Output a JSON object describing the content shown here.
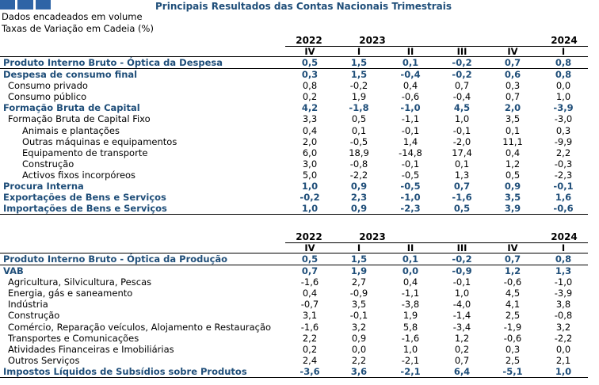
{
  "title": "Principais Resultados das Contas Nacionais Trimestrais",
  "subtitle1": "Dados encadeados em volume",
  "subtitle2": "Taxas de Variação em Cadeia (%)",
  "colors": {
    "accent": "#1f4e79",
    "logo": "#2e64a6"
  },
  "years": [
    "2022",
    "2023",
    "2024"
  ],
  "quarters": [
    "IV",
    "I",
    "II",
    "III",
    "IV",
    "I"
  ],
  "table1": [
    {
      "label": "Produto Interno Bruto - Óptica da Despesa",
      "values": [
        "0,5",
        "1,5",
        "0,1",
        "-0,2",
        "0,7",
        "0,8"
      ],
      "style": "b",
      "level": "l0"
    },
    {
      "label": "Despesa de consumo final",
      "values": [
        "0,3",
        "1,5",
        "-0,4",
        "-0,2",
        "0,6",
        "0,8"
      ],
      "style": "b",
      "level": "l0"
    },
    {
      "label": "Consumo privado",
      "values": [
        "0,8",
        "-0,2",
        "0,4",
        "0,7",
        "0,3",
        "0,0"
      ],
      "style": "",
      "level": "l1"
    },
    {
      "label": "Consumo público",
      "values": [
        "0,2",
        "1,9",
        "-0,6",
        "-0,4",
        "0,7",
        "1,0"
      ],
      "style": "",
      "level": "l1"
    },
    {
      "label": "Formação Bruta de Capital",
      "values": [
        "4,2",
        "-1,8",
        "-1,0",
        "4,5",
        "2,0",
        "-3,9"
      ],
      "style": "b",
      "level": "l0"
    },
    {
      "label": "Formação Bruta de Capital Fixo",
      "values": [
        "3,3",
        "0,5",
        "-1,1",
        "1,0",
        "3,5",
        "-3,0"
      ],
      "style": "",
      "level": "l1"
    },
    {
      "label": "Animais e plantações",
      "values": [
        "0,4",
        "0,1",
        "-0,1",
        "-0,1",
        "0,1",
        "0,3"
      ],
      "style": "",
      "level": "l2"
    },
    {
      "label": "Outras máquinas e equipamentos",
      "values": [
        "2,0",
        "-0,5",
        "1,4",
        "-2,0",
        "11,1",
        "-9,9"
      ],
      "style": "",
      "level": "l2"
    },
    {
      "label": "Equipamento de transporte",
      "values": [
        "6,0",
        "18,9",
        "-14,8",
        "17,4",
        "0,4",
        "2,2"
      ],
      "style": "",
      "level": "l2"
    },
    {
      "label": "Construção",
      "values": [
        "3,0",
        "-0,8",
        "-0,1",
        "0,1",
        "1,2",
        "-0,3"
      ],
      "style": "",
      "level": "l2"
    },
    {
      "label": "Activos fixos incorpóreos",
      "values": [
        "5,0",
        "-2,2",
        "-0,5",
        "1,3",
        "0,5",
        "-2,3"
      ],
      "style": "",
      "level": "l2"
    },
    {
      "label": "Procura Interna",
      "values": [
        "1,0",
        "0,9",
        "-0,5",
        "0,7",
        "0,9",
        "-0,1"
      ],
      "style": "b",
      "level": "l0"
    },
    {
      "label": "Exportações de Bens e Serviços",
      "values": [
        "-0,2",
        "2,3",
        "-1,0",
        "-1,6",
        "3,5",
        "1,6"
      ],
      "style": "b",
      "level": "l0"
    },
    {
      "label": "Importações de Bens e Serviços",
      "values": [
        "1,0",
        "0,9",
        "-2,3",
        "0,5",
        "3,9",
        "-0,6"
      ],
      "style": "b",
      "level": "l0"
    }
  ],
  "table2": [
    {
      "label": "Produto Interno Bruto - Óptica da Produção",
      "values": [
        "0,5",
        "1,5",
        "0,1",
        "-0,2",
        "0,7",
        "0,8"
      ],
      "style": "b",
      "level": "l0"
    },
    {
      "label": "VAB",
      "values": [
        "0,7",
        "1,9",
        "0,0",
        "-0,9",
        "1,2",
        "1,3"
      ],
      "style": "b",
      "level": "l0"
    },
    {
      "label": "Agricultura, Silvicultura, Pescas",
      "values": [
        "-1,6",
        "2,7",
        "0,4",
        "-0,1",
        "-0,6",
        "-1,0"
      ],
      "style": "",
      "level": "l1"
    },
    {
      "label": "Energia, gás e saneamento",
      "values": [
        "0,4",
        "-0,9",
        "-1,1",
        "1,0",
        "4,5",
        "-3,9"
      ],
      "style": "",
      "level": "l1"
    },
    {
      "label": "Indústria",
      "values": [
        "-0,7",
        "3,5",
        "-3,8",
        "-4,0",
        "4,1",
        "3,8"
      ],
      "style": "",
      "level": "l1"
    },
    {
      "label": "Construção",
      "values": [
        "3,1",
        "-0,1",
        "1,9",
        "-1,4",
        "2,5",
        "-0,8"
      ],
      "style": "",
      "level": "l1"
    },
    {
      "label": "Comércio, Reparação veículos, Alojamento e Restauração",
      "values": [
        "-1,6",
        "3,2",
        "5,8",
        "-3,4",
        "-1,9",
        "3,2"
      ],
      "style": "",
      "level": "l1"
    },
    {
      "label": "Transportes e Comunicações",
      "values": [
        "2,2",
        "0,9",
        "-1,6",
        "1,2",
        "-0,6",
        "-2,2"
      ],
      "style": "",
      "level": "l1"
    },
    {
      "label": "Atividades Financeiras e Imobiliárias",
      "values": [
        "0,2",
        "0,0",
        "1,0",
        "0,2",
        "0,3",
        "0,0"
      ],
      "style": "",
      "level": "l1"
    },
    {
      "label": "Outros Serviços",
      "values": [
        "2,4",
        "2,2",
        "-2,1",
        "0,7",
        "2,5",
        "2,1"
      ],
      "style": "",
      "level": "l1"
    },
    {
      "label": "Impostos Líquidos de Subsídios sobre Produtos",
      "values": [
        "-3,6",
        "3,6",
        "-2,1",
        "6,4",
        "-5,1",
        "1,0"
      ],
      "style": "b",
      "level": "l0"
    }
  ]
}
